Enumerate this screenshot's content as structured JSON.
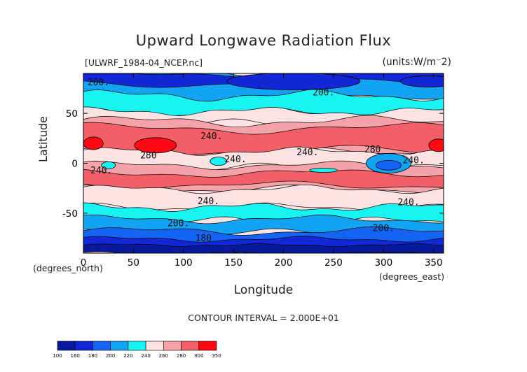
{
  "chart_data": {
    "type": "heatmap",
    "title": "Upward Longwave Radiation Flux",
    "subtitle_left": "[ULWRF_1984-04_NCEP.nc]",
    "subtitle_right": "(units:W/m^2)",
    "xlabel": "Longitude",
    "ylabel": "Latitude",
    "x_units_label": "(degrees_east)",
    "y_units_label": "(degrees_north)",
    "xlim": [
      0,
      360
    ],
    "ylim": [
      -90,
      90
    ],
    "x_ticks": [
      0,
      50,
      100,
      150,
      200,
      250,
      300,
      350
    ],
    "y_ticks": [
      -50,
      0,
      50
    ],
    "contour_interval_text": "CONTOUR INTERVAL = 2.000E+01",
    "contour_labels": [
      {
        "text": "200.",
        "lon": 15,
        "lat": 78
      },
      {
        "text": "200.",
        "lon": 240,
        "lat": 68
      },
      {
        "text": "240.",
        "lon": 128,
        "lat": 24
      },
      {
        "text": "280",
        "lon": 65,
        "lat": 5
      },
      {
        "text": "240.",
        "lon": 18,
        "lat": -10
      },
      {
        "text": "240.",
        "lon": 152,
        "lat": 1
      },
      {
        "text": "240.",
        "lon": 224,
        "lat": 8
      },
      {
        "text": "280",
        "lon": 289,
        "lat": 11
      },
      {
        "text": "240.",
        "lon": 330,
        "lat": 0
      },
      {
        "text": "240.",
        "lon": 125,
        "lat": -41
      },
      {
        "text": "240.",
        "lon": 325,
        "lat": -42
      },
      {
        "text": "200.",
        "lon": 95,
        "lat": -63
      },
      {
        "text": "200.",
        "lon": 300,
        "lat": -68
      },
      {
        "text": "180",
        "lon": 120,
        "lat": -78
      }
    ],
    "colorbar": {
      "levels": [
        "100",
        "160",
        "180",
        "200",
        "220",
        "240",
        "260",
        "280",
        "300",
        "350"
      ],
      "colors": [
        "#0a1a9c",
        "#1227d6",
        "#1464f5",
        "#12a4f2",
        "#17f4f2",
        "#fde3e3",
        "#f5a3a8",
        "#f25f66",
        "#ff0a14"
      ]
    }
  }
}
